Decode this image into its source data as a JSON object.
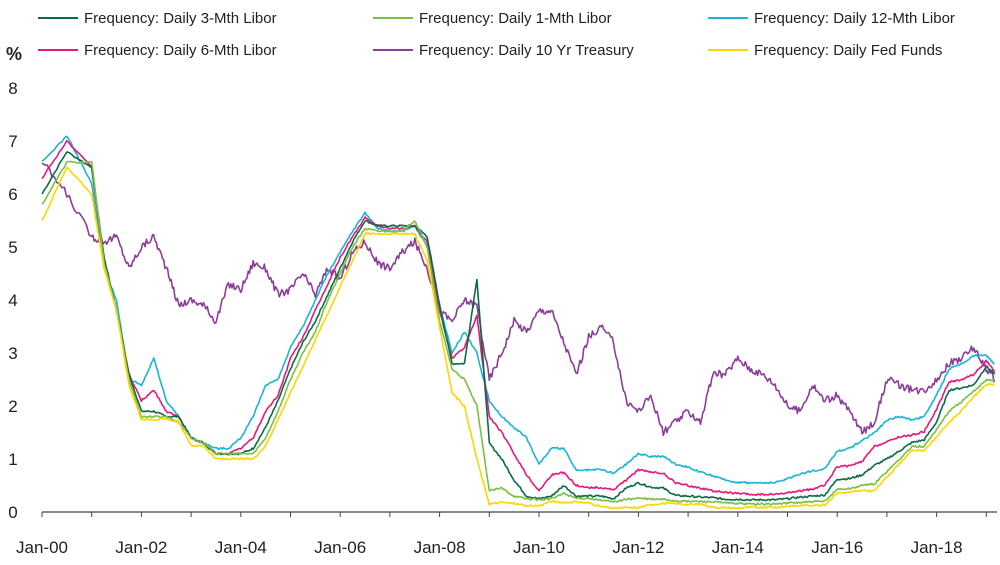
{
  "chart_data": {
    "type": "line",
    "title": "",
    "ylabel": "%",
    "xlabel": "",
    "xlim": [
      "2000-01",
      "2019-03"
    ],
    "ylim": [
      0,
      8
    ],
    "grid": false,
    "legend_placement": "top",
    "x_ticks": [
      "Jan-00",
      "Jan-02",
      "Jan-04",
      "Jan-06",
      "Jan-08",
      "Jan-10",
      "Jan-12",
      "Jan-14",
      "Jan-16",
      "Jan-18"
    ],
    "y_ticks": [
      "0",
      "1",
      "2",
      "3",
      "4",
      "5",
      "6",
      "7",
      "8"
    ],
    "x_values": [
      "2000-01",
      "2000-07",
      "2001-01",
      "2001-04",
      "2001-07",
      "2001-10",
      "2002-01",
      "2002-04",
      "2002-07",
      "2002-10",
      "2003-01",
      "2003-04",
      "2003-07",
      "2003-10",
      "2004-01",
      "2004-04",
      "2004-07",
      "2004-10",
      "2005-01",
      "2005-04",
      "2005-07",
      "2005-10",
      "2006-01",
      "2006-04",
      "2006-07",
      "2006-10",
      "2007-01",
      "2007-04",
      "2007-07",
      "2007-10",
      "2008-01",
      "2008-04",
      "2008-07",
      "2008-10",
      "2009-01",
      "2009-04",
      "2009-07",
      "2009-10",
      "2010-01",
      "2010-04",
      "2010-07",
      "2010-10",
      "2011-01",
      "2011-04",
      "2011-07",
      "2011-10",
      "2012-01",
      "2012-04",
      "2012-07",
      "2012-10",
      "2013-01",
      "2013-04",
      "2013-07",
      "2013-10",
      "2014-01",
      "2014-04",
      "2014-07",
      "2014-10",
      "2015-01",
      "2015-04",
      "2015-07",
      "2015-10",
      "2016-01",
      "2016-04",
      "2016-07",
      "2016-10",
      "2017-01",
      "2017-04",
      "2017-07",
      "2017-10",
      "2018-01",
      "2018-04",
      "2018-07",
      "2018-10",
      "2019-01",
      "2019-03"
    ],
    "series": [
      {
        "name": "Frequency: Daily 3-Mth Libor",
        "color": "#0b6b47",
        "legend_row": 0,
        "legend_col": 0,
        "values": [
          6.0,
          6.8,
          6.5,
          4.8,
          3.8,
          2.6,
          1.9,
          1.9,
          1.8,
          1.8,
          1.4,
          1.3,
          1.1,
          1.1,
          1.1,
          1.2,
          1.6,
          2.1,
          2.7,
          3.2,
          3.6,
          4.1,
          4.6,
          5.1,
          5.5,
          5.4,
          5.4,
          5.4,
          5.4,
          5.2,
          3.9,
          2.8,
          2.8,
          4.4,
          1.3,
          1.0,
          0.6,
          0.3,
          0.25,
          0.3,
          0.5,
          0.3,
          0.3,
          0.3,
          0.25,
          0.45,
          0.55,
          0.47,
          0.45,
          0.31,
          0.3,
          0.28,
          0.27,
          0.24,
          0.24,
          0.23,
          0.23,
          0.23,
          0.25,
          0.28,
          0.3,
          0.32,
          0.62,
          0.63,
          0.7,
          0.88,
          1.0,
          1.15,
          1.31,
          1.36,
          1.7,
          2.3,
          2.34,
          2.4,
          2.75,
          2.6
        ]
      },
      {
        "name": "Frequency: Daily 1-Mth Libor",
        "color": "#7ac043",
        "legend_row": 0,
        "legend_col": 1,
        "values": [
          5.8,
          6.6,
          6.6,
          4.7,
          3.8,
          2.5,
          1.8,
          1.8,
          1.8,
          1.7,
          1.4,
          1.3,
          1.1,
          1.1,
          1.1,
          1.1,
          1.4,
          1.9,
          2.5,
          3.0,
          3.4,
          4.0,
          4.5,
          5.0,
          5.35,
          5.3,
          5.3,
          5.3,
          5.5,
          5.0,
          3.6,
          2.7,
          2.5,
          2.0,
          0.4,
          0.45,
          0.3,
          0.25,
          0.23,
          0.25,
          0.35,
          0.26,
          0.26,
          0.22,
          0.19,
          0.24,
          0.26,
          0.24,
          0.24,
          0.21,
          0.2,
          0.2,
          0.19,
          0.17,
          0.16,
          0.15,
          0.15,
          0.15,
          0.17,
          0.18,
          0.19,
          0.2,
          0.43,
          0.44,
          0.5,
          0.53,
          0.77,
          0.99,
          1.23,
          1.24,
          1.56,
          1.9,
          2.08,
          2.28,
          2.5,
          2.48
        ]
      },
      {
        "name": "Frequency: Daily 12-Mth Libor",
        "color": "#1ab5d6",
        "legend_row": 0,
        "legend_col": 2,
        "values": [
          6.6,
          7.1,
          6.2,
          4.6,
          4.0,
          2.5,
          2.4,
          2.9,
          2.1,
          1.8,
          1.4,
          1.3,
          1.2,
          1.2,
          1.4,
          1.8,
          2.4,
          2.5,
          3.1,
          3.5,
          4.0,
          4.5,
          4.9,
          5.3,
          5.65,
          5.35,
          5.3,
          5.3,
          5.4,
          5.0,
          3.9,
          3.0,
          3.4,
          3.0,
          2.1,
          1.8,
          1.6,
          1.4,
          0.9,
          1.2,
          1.2,
          0.78,
          0.79,
          0.8,
          0.73,
          0.9,
          1.1,
          1.05,
          1.05,
          0.9,
          0.85,
          0.75,
          0.68,
          0.6,
          0.56,
          0.55,
          0.55,
          0.55,
          0.63,
          0.72,
          0.77,
          0.82,
          1.15,
          1.2,
          1.35,
          1.5,
          1.73,
          1.8,
          1.74,
          1.8,
          2.2,
          2.7,
          2.8,
          2.95,
          2.95,
          2.8
        ]
      },
      {
        "name": "Frequency: Daily 6-Mth Libor",
        "color": "#e6197d",
        "legend_row": 1,
        "legend_col": 0,
        "values": [
          6.3,
          7.0,
          6.5,
          4.7,
          3.8,
          2.6,
          2.1,
          2.3,
          1.9,
          1.8,
          1.4,
          1.3,
          1.1,
          1.1,
          1.2,
          1.4,
          1.9,
          2.2,
          2.9,
          3.3,
          3.8,
          4.3,
          4.8,
          5.2,
          5.55,
          5.4,
          5.35,
          5.35,
          5.4,
          5.1,
          3.8,
          2.9,
          3.1,
          3.7,
          1.8,
          1.5,
          1.1,
          0.7,
          0.4,
          0.7,
          0.75,
          0.5,
          0.46,
          0.46,
          0.42,
          0.6,
          0.8,
          0.75,
          0.73,
          0.55,
          0.5,
          0.45,
          0.4,
          0.37,
          0.35,
          0.33,
          0.33,
          0.33,
          0.36,
          0.4,
          0.43,
          0.5,
          0.86,
          0.87,
          0.95,
          1.24,
          1.32,
          1.42,
          1.45,
          1.52,
          1.94,
          2.45,
          2.5,
          2.6,
          2.85,
          2.65
        ]
      },
      {
        "name": "Frequency: Daily 10 Yr Treasury",
        "color": "#8c3d99",
        "legend_row": 1,
        "legend_col": 1,
        "values": [
          6.6,
          6.0,
          5.2,
          5.1,
          5.2,
          4.6,
          5.0,
          5.2,
          4.6,
          3.9,
          4.0,
          3.9,
          3.6,
          4.3,
          4.2,
          4.7,
          4.6,
          4.1,
          4.2,
          4.5,
          4.1,
          4.6,
          4.4,
          4.9,
          5.1,
          4.7,
          4.6,
          4.9,
          5.1,
          4.6,
          3.8,
          3.6,
          4.0,
          3.9,
          2.5,
          3.0,
          3.6,
          3.4,
          3.8,
          3.8,
          3.2,
          2.6,
          3.3,
          3.5,
          3.2,
          2.1,
          1.9,
          2.2,
          1.5,
          1.7,
          1.9,
          1.7,
          2.6,
          2.6,
          2.9,
          2.7,
          2.6,
          2.4,
          2.0,
          1.9,
          2.4,
          2.1,
          2.2,
          1.9,
          1.5,
          1.7,
          2.5,
          2.4,
          2.3,
          2.3,
          2.5,
          2.8,
          2.9,
          3.1,
          2.7,
          2.5
        ]
      },
      {
        "name": "Frequency: Daily Fed Funds",
        "color": "#ffd500",
        "legend_row": 1,
        "legend_col": 2,
        "values": [
          5.5,
          6.5,
          6.0,
          4.6,
          3.8,
          2.4,
          1.75,
          1.75,
          1.75,
          1.7,
          1.25,
          1.25,
          1.0,
          1.0,
          1.0,
          1.0,
          1.25,
          1.75,
          2.25,
          2.75,
          3.25,
          3.75,
          4.25,
          4.75,
          5.25,
          5.25,
          5.25,
          5.25,
          5.25,
          4.75,
          3.5,
          2.25,
          2.0,
          1.0,
          0.15,
          0.18,
          0.16,
          0.12,
          0.12,
          0.2,
          0.18,
          0.19,
          0.17,
          0.1,
          0.07,
          0.08,
          0.08,
          0.14,
          0.16,
          0.16,
          0.14,
          0.15,
          0.09,
          0.08,
          0.07,
          0.09,
          0.09,
          0.09,
          0.11,
          0.12,
          0.13,
          0.13,
          0.36,
          0.37,
          0.4,
          0.4,
          0.66,
          0.91,
          1.16,
          1.16,
          1.42,
          1.69,
          1.91,
          2.18,
          2.4,
          2.41
        ]
      }
    ]
  }
}
